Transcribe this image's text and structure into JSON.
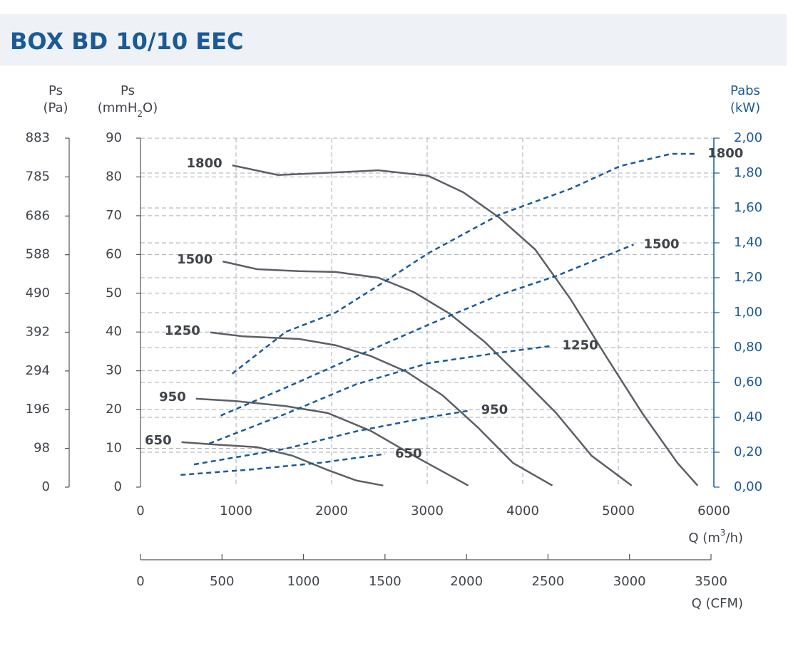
{
  "chart_data": {
    "type": "line",
    "title": "BOX BD 10/10 EEC",
    "x_label": [
      "Q (m",
      "3",
      "/h)"
    ],
    "x2_label": "Q (CFM)",
    "y_label": [
      "Ps",
      "(mmH",
      "2",
      "O)"
    ],
    "y3_label": [
      "Ps",
      "(Pa)"
    ],
    "y2_label": [
      "Pabs",
      "(kW)"
    ],
    "xlim": [
      0,
      6000
    ],
    "xticks": [
      0,
      1000,
      2000,
      3000,
      4000,
      5000,
      6000
    ],
    "x2lim": [
      0,
      3500
    ],
    "x2ticks": [
      0,
      500,
      1000,
      1500,
      2000,
      2500,
      3000,
      3500
    ],
    "ylim": [
      0,
      90
    ],
    "yticks": [
      0,
      10,
      20,
      30,
      40,
      50,
      60,
      70,
      80,
      90
    ],
    "y3lim": [
      0,
      883
    ],
    "y3ticks": [
      0,
      98,
      196,
      294,
      392,
      490,
      588,
      686,
      785,
      883
    ],
    "y2lim": [
      0,
      2
    ],
    "y2ticks": [
      {
        "value": 0,
        "label": "0,00"
      },
      {
        "value": 0.2,
        "label": "0,20"
      },
      {
        "value": 0.4,
        "label": "0,40"
      },
      {
        "value": 0.6,
        "label": "0,60"
      },
      {
        "value": 0.8,
        "label": "0,80"
      },
      {
        "value": 1,
        "label": "1,00"
      },
      {
        "value": 1.2,
        "label": "1,20"
      },
      {
        "value": 1.4,
        "label": "1,40"
      },
      {
        "value": 1.6,
        "label": "1,60"
      },
      {
        "value": 1.8,
        "label": "1,80"
      },
      {
        "value": 2,
        "label": "2,00"
      }
    ],
    "grid": true,
    "series": [
      {
        "name": "1800",
        "color": "#5b5f66",
        "style": "solid",
        "x": [
          960,
          1440,
          1890,
          2490,
          3010,
          3380,
          3750,
          4130,
          4500,
          4870,
          5250,
          5620,
          5830
        ],
        "values": [
          83,
          80.5,
          81,
          81.7,
          80.3,
          76,
          69.6,
          61.3,
          48.5,
          33.8,
          19.1,
          6.2,
          0.4
        ]
      },
      {
        "name": "1500",
        "color": "#5b5f66",
        "style": "solid",
        "x": [
          860,
          1220,
          1660,
          2040,
          2490,
          2860,
          3230,
          3600,
          3980,
          4350,
          4720,
          5140
        ],
        "values": [
          58.2,
          56.2,
          55.7,
          55.5,
          54,
          50.3,
          44.8,
          37.5,
          28.3,
          19.1,
          8.1,
          0.4
        ]
      },
      {
        "name": "1250",
        "color": "#5b5f66",
        "style": "solid",
        "x": [
          730,
          1070,
          1660,
          2040,
          2410,
          2780,
          3160,
          3530,
          3900,
          4310
        ],
        "values": [
          39.9,
          38.9,
          38.2,
          36.6,
          33.8,
          29.8,
          23.7,
          15.4,
          6.2,
          0.4
        ]
      },
      {
        "name": "950",
        "color": "#5b5f66",
        "style": "solid",
        "x": [
          580,
          990,
          1520,
          1960,
          2410,
          2860,
          3430
        ],
        "values": [
          22.8,
          22.2,
          20.9,
          19.1,
          14.5,
          8.1,
          0.4
        ]
      },
      {
        "name": "650",
        "color": "#5b5f66",
        "style": "solid",
        "x": [
          430,
          770,
          1220,
          1590,
          1960,
          2260,
          2540
        ],
        "values": [
          11.6,
          11,
          10.3,
          8.1,
          4.4,
          1.7,
          0.4
        ]
      },
      {
        "name": "1800",
        "axis": "y2",
        "color": "#1a5a96",
        "style": "dashed",
        "x": [
          960,
          1520,
          2040,
          2560,
          3010,
          3750,
          4500,
          5020,
          5550,
          5830
        ],
        "values": [
          0.65,
          0.89,
          1,
          1.18,
          1.34,
          1.56,
          1.71,
          1.84,
          1.91,
          1.91
        ]
      },
      {
        "name": "1500",
        "axis": "y2",
        "color": "#1a5a96",
        "style": "dashed",
        "x": [
          840,
          1520,
          2260,
          3010,
          3750,
          4350,
          5160
        ],
        "values": [
          0.41,
          0.57,
          0.75,
          0.93,
          1.1,
          1.21,
          1.39
        ]
      },
      {
        "name": "1250",
        "axis": "y2",
        "color": "#1a5a96",
        "style": "dashed",
        "x": [
          720,
          1520,
          2260,
          3010,
          3750,
          4310
        ],
        "values": [
          0.25,
          0.42,
          0.59,
          0.71,
          0.77,
          0.81
        ]
      },
      {
        "name": "950",
        "axis": "y2",
        "color": "#1a5a96",
        "style": "dashed",
        "x": [
          560,
          1520,
          2260,
          3010,
          3460
        ],
        "values": [
          0.13,
          0.22,
          0.32,
          0.4,
          0.44
        ]
      },
      {
        "name": "650",
        "axis": "y2",
        "color": "#1a5a96",
        "style": "dashed",
        "x": [
          420,
          1140,
          1890,
          2560
        ],
        "values": [
          0.07,
          0.1,
          0.14,
          0.19
        ]
      }
    ]
  }
}
